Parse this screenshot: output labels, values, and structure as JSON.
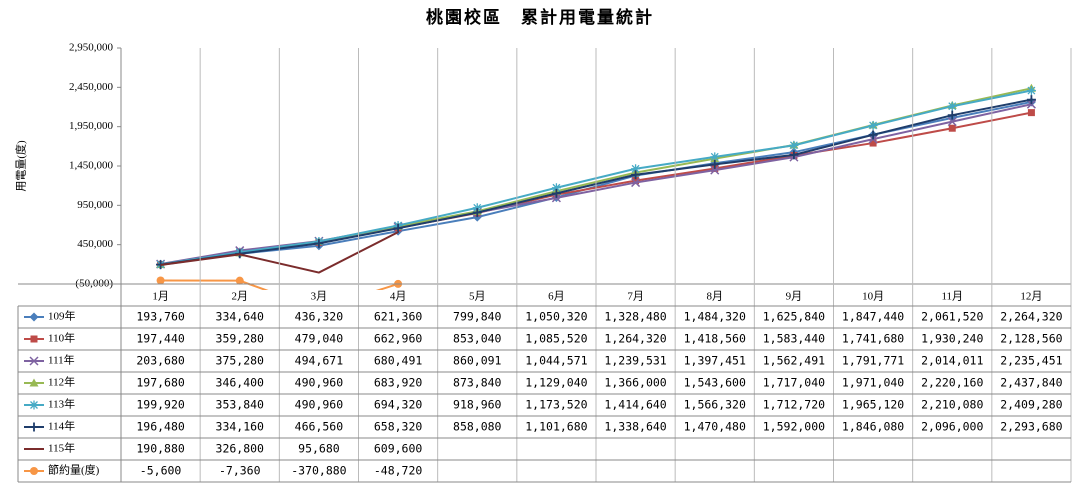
{
  "chart_data": {
    "type": "line",
    "title": "桃園校區　累計用電量統計",
    "y_label": "用電量(度)",
    "categories": [
      "1月",
      "2月",
      "3月",
      "4月",
      "5月",
      "6月",
      "7月",
      "8月",
      "9月",
      "10月",
      "11月",
      "12月"
    ],
    "ylim": [
      -50000,
      2950000
    ],
    "yticks": [
      {
        "value": -50000,
        "label": "(50,000)"
      },
      {
        "value": 450000,
        "label": "450,000"
      },
      {
        "value": 950000,
        "label": "950,000"
      },
      {
        "value": 1450000,
        "label": "1,450,000"
      },
      {
        "value": 1950000,
        "label": "1,950,000"
      },
      {
        "value": 2450000,
        "label": "2,450,000"
      },
      {
        "value": 2950000,
        "label": "2,950,000"
      }
    ],
    "series": [
      {
        "name": "109年",
        "color": "#4a7ebb",
        "marker": "diamond",
        "values": [
          193760,
          334640,
          436320,
          621360,
          799840,
          1050320,
          1328480,
          1484320,
          1625840,
          1847440,
          2061520,
          2264320
        ],
        "value_labels": [
          "193,760",
          "334,640",
          "436,320",
          "621,360",
          "799,840",
          "1,050,320",
          "1,328,480",
          "1,484,320",
          "1,625,840",
          "1,847,440",
          "2,061,520",
          "2,264,320"
        ]
      },
      {
        "name": "110年",
        "color": "#be4b48",
        "marker": "square",
        "values": [
          197440,
          359280,
          479040,
          662960,
          853040,
          1085520,
          1264320,
          1418560,
          1583440,
          1741680,
          1930240,
          2128560
        ],
        "value_labels": [
          "197,440",
          "359,280",
          "479,040",
          "662,960",
          "853,040",
          "1,085,520",
          "1,264,320",
          "1,418,560",
          "1,583,440",
          "1,741,680",
          "1,930,240",
          "2,128,560"
        ]
      },
      {
        "name": "111年",
        "color": "#7e62a1",
        "marker": "x",
        "values": [
          203680,
          375280,
          494671,
          680491,
          860091,
          1044571,
          1239531,
          1397451,
          1562491,
          1791771,
          2014011,
          2235451
        ],
        "value_labels": [
          "203,680",
          "375,280",
          "494,671",
          "680,491",
          "860,091",
          "1,044,571",
          "1,239,531",
          "1,397,451",
          "1,562,491",
          "1,791,771",
          "2,014,011",
          "2,235,451"
        ]
      },
      {
        "name": "112年",
        "color": "#98b954",
        "marker": "triangle",
        "values": [
          197680,
          346400,
          490960,
          683920,
          873840,
          1129040,
          1366000,
          1543600,
          1717040,
          1971040,
          2220160,
          2437840
        ],
        "value_labels": [
          "197,680",
          "346,400",
          "490,960",
          "683,920",
          "873,840",
          "1,129,040",
          "1,366,000",
          "1,543,600",
          "1,717,040",
          "1,971,040",
          "2,220,160",
          "2,437,840"
        ]
      },
      {
        "name": "113年",
        "color": "#46aac5",
        "marker": "star",
        "values": [
          199920,
          353840,
          490960,
          694320,
          918960,
          1173520,
          1414640,
          1566320,
          1712720,
          1965120,
          2210080,
          2409280
        ],
        "value_labels": [
          "199,920",
          "353,840",
          "490,960",
          "694,320",
          "918,960",
          "1,173,520",
          "1,414,640",
          "1,566,320",
          "1,712,720",
          "1,965,120",
          "2,210,080",
          "2,409,280"
        ]
      },
      {
        "name": "114年",
        "color": "#1f3d6b",
        "marker": "plus",
        "values": [
          196480,
          334160,
          466560,
          658320,
          858080,
          1101680,
          1338640,
          1470480,
          1592000,
          1846080,
          2096000,
          2293680
        ],
        "value_labels": [
          "196,480",
          "334,160",
          "466,560",
          "658,320",
          "858,080",
          "1,101,680",
          "1,338,640",
          "1,470,480",
          "1,592,000",
          "1,846,080",
          "2,096,000",
          "2,293,680"
        ]
      },
      {
        "name": "115年",
        "color": "#7b2c2c",
        "marker": "none",
        "values": [
          190880,
          326800,
          95680,
          609600,
          null,
          null,
          null,
          null,
          null,
          null,
          null,
          null
        ],
        "value_labels": [
          "190,880",
          "326,800",
          "95,680",
          "609,600",
          null,
          null,
          null,
          null,
          null,
          null,
          null,
          null
        ]
      },
      {
        "name": "節約量(度)",
        "color": "#f79646",
        "marker": "circle",
        "values": [
          -5600,
          -7360,
          -370880,
          -48720,
          null,
          null,
          null,
          null,
          null,
          null,
          null,
          null
        ],
        "value_labels": [
          "-5,600",
          "-7,360",
          "-370,880",
          "-48,720",
          null,
          null,
          null,
          null,
          null,
          null,
          null,
          null
        ]
      }
    ]
  }
}
